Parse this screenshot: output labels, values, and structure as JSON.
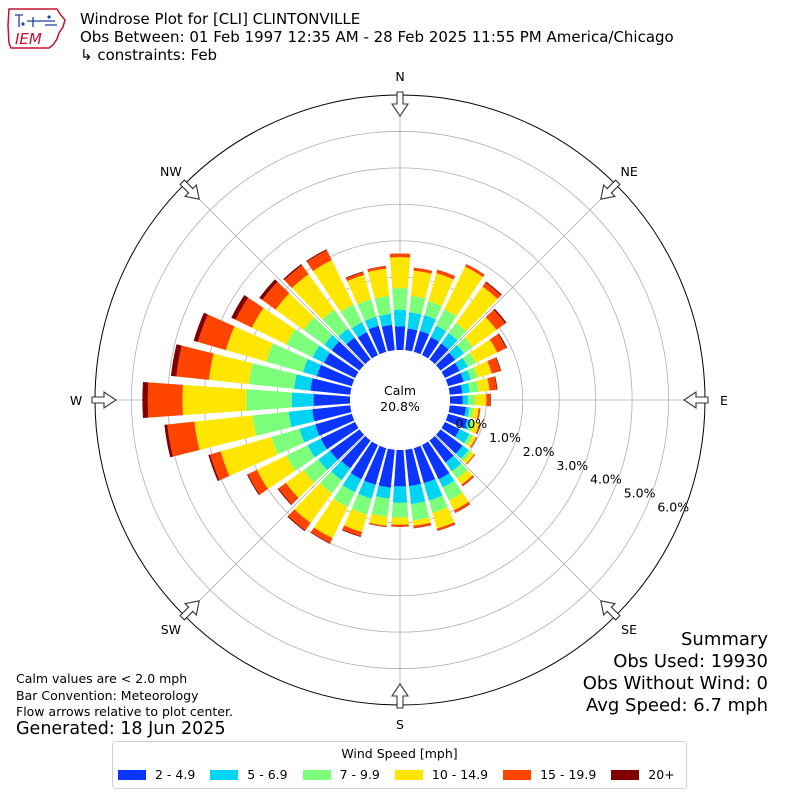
{
  "logo": {
    "text": "IEM",
    "color": "#c8102e"
  },
  "header": {
    "title_line1": "Windrose Plot for [CLI] CLINTONVILLE",
    "title_line2": "Obs Between: 01 Feb 1997 12:35 AM - 28 Feb 2025 11:55 PM America/Chicago",
    "title_line3": "↳ constraints: Feb"
  },
  "notes": {
    "calm_note": "Calm values are < 2.0 mph",
    "bar_convention": "Bar Convention: Meteorology",
    "flow_arrows": "Flow arrows relative to plot center.",
    "generated": "Generated: 18 Jun 2025"
  },
  "summary": {
    "title": "Summary",
    "obs_used": "Obs Used: 19930",
    "obs_without_wind": "Obs Without Wind: 0",
    "avg_speed": "Avg Speed: 6.7 mph"
  },
  "chart_data": {
    "type": "windrose",
    "calm_label": "Calm",
    "calm_percent": "20.8%",
    "compass_labels": [
      "N",
      "NE",
      "E",
      "SE",
      "S",
      "SW",
      "W",
      "NW"
    ],
    "radial_ticks": [
      "0.0%",
      "1.0%",
      "2.0%",
      "3.0%",
      "4.0%",
      "5.0%",
      "6.0%"
    ],
    "rlim": [
      0,
      7
    ],
    "legend_title": "Wind Speed [mph]",
    "speed_bins": [
      {
        "name": "2 - 4.9",
        "color": "#0b35ff"
      },
      {
        "name": "5 - 6.9",
        "color": "#00d4f3"
      },
      {
        "name": "7 - 9.9",
        "color": "#7cff7a"
      },
      {
        "name": "10 - 14.9",
        "color": "#ffe600"
      },
      {
        "name": "15 - 19.9",
        "color": "#ff4400"
      },
      {
        "name": "20+",
        "color": "#800000"
      }
    ],
    "directions_deg": [
      0,
      10,
      20,
      30,
      40,
      50,
      60,
      70,
      80,
      90,
      100,
      110,
      120,
      130,
      140,
      150,
      160,
      170,
      180,
      190,
      200,
      210,
      220,
      230,
      240,
      250,
      260,
      270,
      280,
      290,
      300,
      310,
      320,
      330,
      340,
      350
    ],
    "stacked_percent": [
      [
        0.65,
        1.1,
        1.7,
        2.55,
        2.65,
        2.65
      ],
      [
        0.6,
        1.05,
        1.5,
        2.2,
        2.28,
        2.28
      ],
      [
        0.6,
        1.05,
        1.45,
        2.25,
        2.35,
        2.35
      ],
      [
        0.55,
        0.9,
        1.4,
        2.7,
        2.78,
        2.78
      ],
      [
        0.55,
        0.9,
        1.25,
        2.48,
        2.62,
        2.65
      ],
      [
        0.5,
        0.8,
        1.1,
        1.9,
        2.2,
        2.24
      ],
      [
        0.45,
        0.7,
        0.95,
        1.6,
        1.87,
        1.9
      ],
      [
        0.45,
        0.65,
        0.85,
        1.25,
        1.5,
        1.52
      ],
      [
        0.35,
        0.55,
        0.8,
        1.1,
        1.3,
        1.32
      ],
      [
        0.35,
        0.5,
        0.7,
        1.0,
        1.1,
        1.12
      ],
      [
        0.45,
        0.55,
        0.65,
        0.8,
        0.85,
        0.85
      ],
      [
        0.55,
        0.65,
        0.75,
        0.9,
        0.94,
        0.95
      ],
      [
        0.45,
        0.75,
        0.85,
        0.95,
        0.97,
        0.98
      ],
      [
        0.75,
        0.95,
        1.05,
        1.15,
        1.18,
        1.18
      ],
      [
        0.75,
        1.05,
        1.3,
        1.5,
        1.55,
        1.56
      ],
      [
        1.05,
        1.3,
        1.7,
        2.0,
        2.07,
        2.08
      ],
      [
        1.0,
        1.5,
        1.85,
        2.3,
        2.36,
        2.37
      ],
      [
        1.0,
        1.5,
        1.95,
        2.1,
        2.16,
        2.17
      ],
      [
        1.0,
        1.45,
        1.85,
        2.05,
        2.1,
        2.11
      ],
      [
        1.05,
        1.35,
        1.85,
        2.1,
        2.13,
        2.14
      ],
      [
        1.05,
        1.45,
        1.9,
        2.4,
        2.52,
        2.54
      ],
      [
        1.05,
        1.45,
        1.9,
        2.85,
        3.0,
        3.02
      ],
      [
        0.95,
        1.35,
        1.8,
        2.8,
        3.05,
        3.08
      ],
      [
        1.0,
        1.4,
        1.9,
        2.5,
        2.75,
        2.78
      ],
      [
        1.05,
        1.45,
        2.1,
        3.0,
        3.27,
        3.3
      ],
      [
        1.05,
        1.5,
        2.3,
        3.75,
        4.05,
        4.1
      ],
      [
        1.05,
        1.7,
        2.7,
        4.3,
        5.05,
        5.13
      ],
      [
        1.0,
        1.6,
        2.85,
        4.6,
        5.55,
        5.7
      ],
      [
        1.1,
        1.55,
        2.8,
        3.9,
        4.8,
        4.95
      ],
      [
        1.0,
        1.4,
        2.45,
        3.6,
        4.4,
        4.52
      ],
      [
        0.95,
        1.3,
        2.1,
        3.15,
        3.65,
        3.78
      ],
      [
        0.95,
        1.2,
        1.9,
        2.85,
        3.3,
        3.4
      ],
      [
        0.75,
        1.05,
        1.7,
        2.9,
        3.2,
        3.24
      ],
      [
        0.7,
        1.0,
        1.55,
        2.9,
        3.2,
        3.23
      ],
      [
        0.75,
        1.0,
        1.5,
        2.2,
        2.28,
        2.3
      ],
      [
        0.7,
        1.0,
        1.5,
        2.25,
        2.32,
        2.33
      ]
    ]
  }
}
